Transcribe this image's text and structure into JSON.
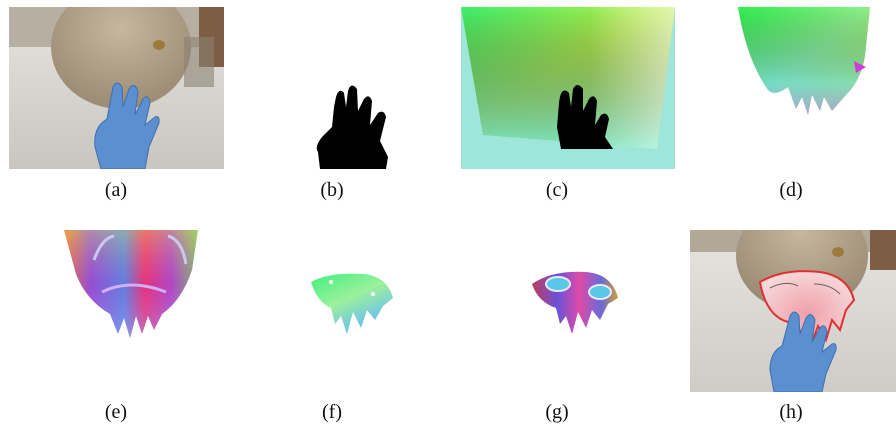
{
  "figure": {
    "panels": [
      {
        "label": "(a)",
        "content": "RGB photo of gloved hand touching mannequin face"
      },
      {
        "label": "(b)",
        "content": "binary hand mask"
      },
      {
        "label": "(c)",
        "content": "color-coded coordinate map with hand mask"
      },
      {
        "label": "(d)",
        "content": "rendered face surface with hand occlusion"
      },
      {
        "label": "(e)",
        "content": "normal map of face surface"
      },
      {
        "label": "(f)",
        "content": "cropped coordinate map of contact region"
      },
      {
        "label": "(g)",
        "content": "cropped normal map of contact region"
      },
      {
        "label": "(h)",
        "content": "RGB photo with highlighted contact region overlay"
      }
    ]
  },
  "colors": {
    "glove": "#5b8fcf",
    "mask": "#000000",
    "contour": "#e03030",
    "table": "#d8d6d2",
    "bg_wall": "#8a6a4f"
  }
}
